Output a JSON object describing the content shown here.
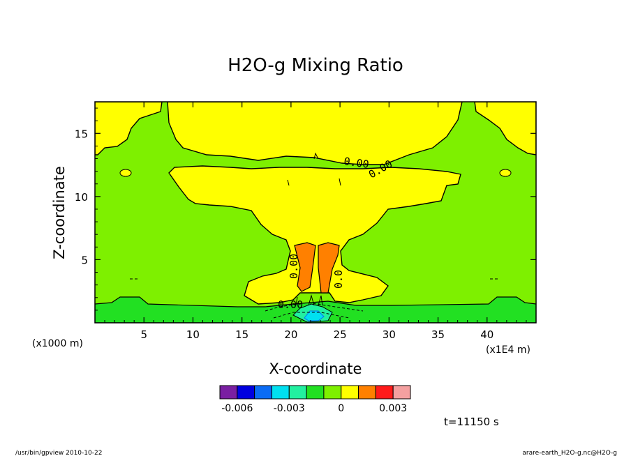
{
  "chart_data": {
    "type": "contour",
    "title": "H2O-g Mixing Ratio",
    "xlabel": "X-coordinate",
    "ylabel": "Z-coordinate",
    "x_unit": "(x1E4 m)",
    "y_unit": "(x1000 m)",
    "xlim": [
      0,
      45
    ],
    "ylim": [
      0,
      17.5
    ],
    "x_ticks": [
      5,
      10,
      15,
      20,
      25,
      30,
      35,
      40
    ],
    "y_ticks": [
      5,
      10,
      15
    ],
    "contour_labels": [
      "0.00",
      "0.00",
      "0.00",
      "0.00",
      "0.0"
    ],
    "colorbar": {
      "colors": [
        "#7a1fa2",
        "#0000e0",
        "#0a6cf5",
        "#00e0f0",
        "#22f0a0",
        "#22e022",
        "#7ef000",
        "#ffff00",
        "#ff8000",
        "#ff1a1a",
        "#f4a0a0"
      ],
      "tick_labels": [
        "-0.006",
        "-0.003",
        "0",
        "0.003"
      ]
    },
    "time_label": "t=11150 s"
  },
  "footer": {
    "left": "/usr/bin/gpview   2010-10-22",
    "right": "arare-earth_H2O-g.nc@H2O-g"
  }
}
